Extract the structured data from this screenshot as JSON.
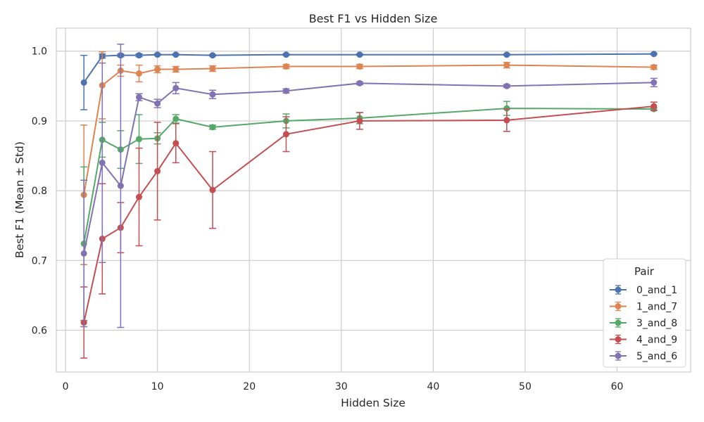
{
  "chart_data": {
    "type": "line",
    "title": "Best F1 vs Hidden Size",
    "xlabel": "Hidden Size",
    "ylabel": "Best F1 (Mean ± Std)",
    "xlim": [
      -1,
      68
    ],
    "ylim": [
      0.54,
      1.033
    ],
    "xticks": [
      0,
      10,
      20,
      30,
      40,
      50,
      60
    ],
    "yticks": [
      0.6,
      0.7,
      0.8,
      0.9,
      1.0
    ],
    "xtick_labels": [
      "0",
      "10",
      "20",
      "30",
      "40",
      "50",
      "60"
    ],
    "ytick_labels": [
      "0.6",
      "0.7",
      "0.8",
      "0.9",
      "1.0"
    ],
    "grid": true,
    "legend_title": "Pair",
    "legend_position": "bottom-right",
    "x": [
      2,
      4,
      6,
      8,
      10,
      12,
      16,
      24,
      32,
      48,
      64
    ],
    "series": [
      {
        "name": "0_and_1",
        "color": "#4c72b0",
        "mean": [
          0.955,
          0.993,
          0.994,
          0.994,
          0.995,
          0.995,
          0.994,
          0.995,
          0.995,
          0.995,
          0.996
        ],
        "std": [
          0.039,
          0.003,
          0.002,
          0.002,
          0.001,
          0.001,
          0.001,
          0.001,
          0.001,
          0.001,
          0.001
        ]
      },
      {
        "name": "1_and_7",
        "color": "#dd8452",
        "mean": [
          0.794,
          0.951,
          0.972,
          0.968,
          0.974,
          0.974,
          0.975,
          0.978,
          0.978,
          0.98,
          0.977
        ],
        "std": [
          0.1,
          0.048,
          0.008,
          0.012,
          0.005,
          0.004,
          0.004,
          0.003,
          0.003,
          0.004,
          0.003
        ]
      },
      {
        "name": "3_and_8",
        "color": "#55a868",
        "mean": [
          0.724,
          0.873,
          0.859,
          0.874,
          0.875,
          0.903,
          0.891,
          0.9,
          0.904,
          0.918,
          0.917
        ],
        "std": [
          0.11,
          0.025,
          0.027,
          0.035,
          0.008,
          0.006,
          0.003,
          0.01,
          0.008,
          0.01,
          0.002
        ]
      },
      {
        "name": "4_and_9",
        "color": "#c44e52",
        "mean": [
          0.611,
          0.731,
          0.747,
          0.791,
          0.828,
          0.868,
          0.801,
          0.881,
          0.9,
          0.901,
          0.921
        ],
        "std": [
          0.051,
          0.079,
          0.036,
          0.07,
          0.07,
          0.028,
          0.055,
          0.025,
          0.012,
          0.016,
          0.006
        ]
      },
      {
        "name": "5_and_6",
        "color": "#8172b3",
        "mean": [
          0.71,
          0.84,
          0.807,
          0.934,
          0.925,
          0.947,
          0.938,
          0.943,
          0.954,
          0.95,
          0.955
        ],
        "std": [
          0.105,
          0.143,
          0.203,
          0.005,
          0.006,
          0.008,
          0.006,
          0.003,
          0.002,
          0.002,
          0.006
        ]
      }
    ]
  }
}
